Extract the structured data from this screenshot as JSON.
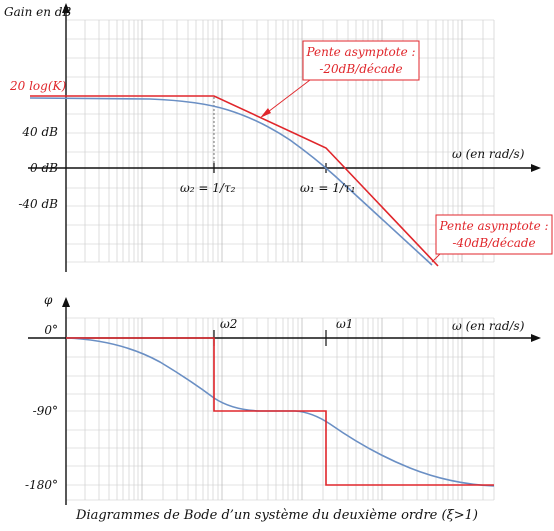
{
  "caption": "Diagrammes de Bode d’un système du deuxième ordre (ξ>1)",
  "gain": {
    "axis_y_label": "Gain en dB",
    "axis_x_label": "ω (en rad/s)",
    "tick_20logK": "20 log(K)",
    "tick_40": "40 dB",
    "tick_0": "0 dB",
    "tick_m40": "-40 dB",
    "omega2_label": "ω₂ = 1/τ₂",
    "omega1_label": "ω₁ = 1/τ₁",
    "annot1_line1": "Pente asymptote :",
    "annot1_line2": "-20dB/décade",
    "annot2_line1": "Pente asymptote :",
    "annot2_line2": "-40dB/décade"
  },
  "phase": {
    "axis_y_label": "φ",
    "axis_x_label": "ω (en rad/s)",
    "tick_0": "0°",
    "tick_m90": "-90°",
    "tick_m180": "-180°",
    "omega2": "ω2",
    "omega1": "ω1"
  },
  "colors": {
    "asymptote": "#e0262b",
    "real_curve": "#6a8fc4",
    "grid": "#bdbdbd"
  }
}
